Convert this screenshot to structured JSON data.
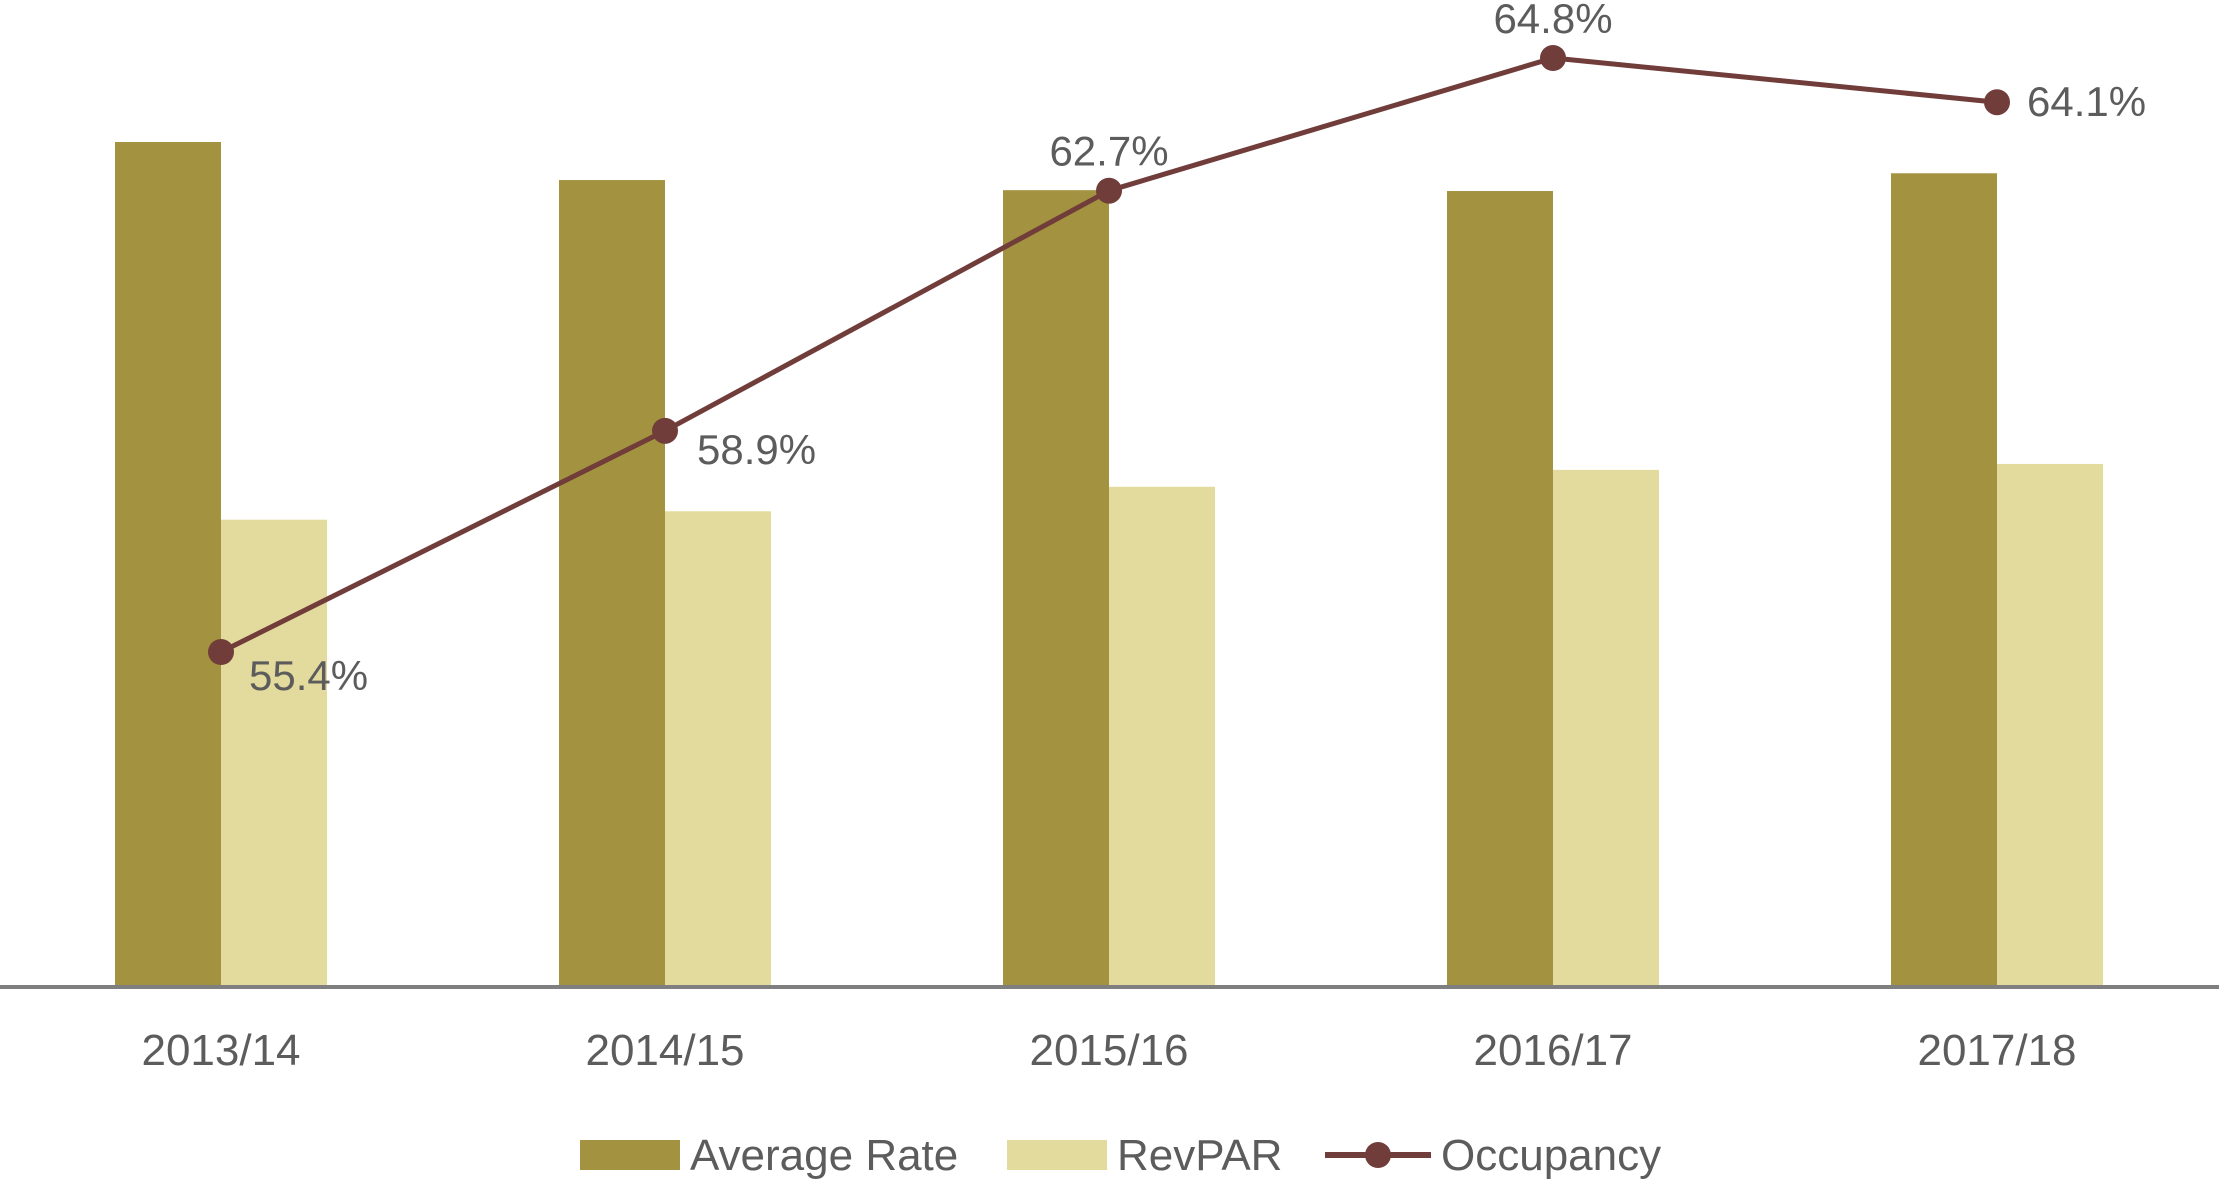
{
  "chart_data": {
    "type": "bar",
    "categories": [
      "2013/14",
      "2014/15",
      "2015/16",
      "2016/17",
      "2017/18"
    ],
    "series": [
      {
        "name": "Average Rate",
        "kind": "bar",
        "color": "#a39340",
        "values": [
          100,
          95.5,
          94.3,
          94.2,
          96.3
        ]
      },
      {
        "name": "RevPAR",
        "kind": "bar",
        "color": "#e3db9d",
        "values": [
          55.3,
          56.3,
          59.2,
          61.2,
          61.9
        ]
      },
      {
        "name": "Occupancy",
        "kind": "line",
        "color": "#713d3a",
        "values": [
          55.4,
          58.9,
          62.7,
          64.8,
          64.1
        ],
        "labels": [
          "55.4%",
          "58.9%",
          "62.7%",
          "64.8%",
          "64.1%"
        ]
      }
    ],
    "bar_axis_range": [
      0,
      100
    ],
    "line_axis_range": [
      48.7,
      65.5
    ],
    "gridlines": false,
    "legend_position": "bottom",
    "axis_color": "#7f7f7f",
    "title": "",
    "xlabel": "",
    "ylabel": ""
  }
}
